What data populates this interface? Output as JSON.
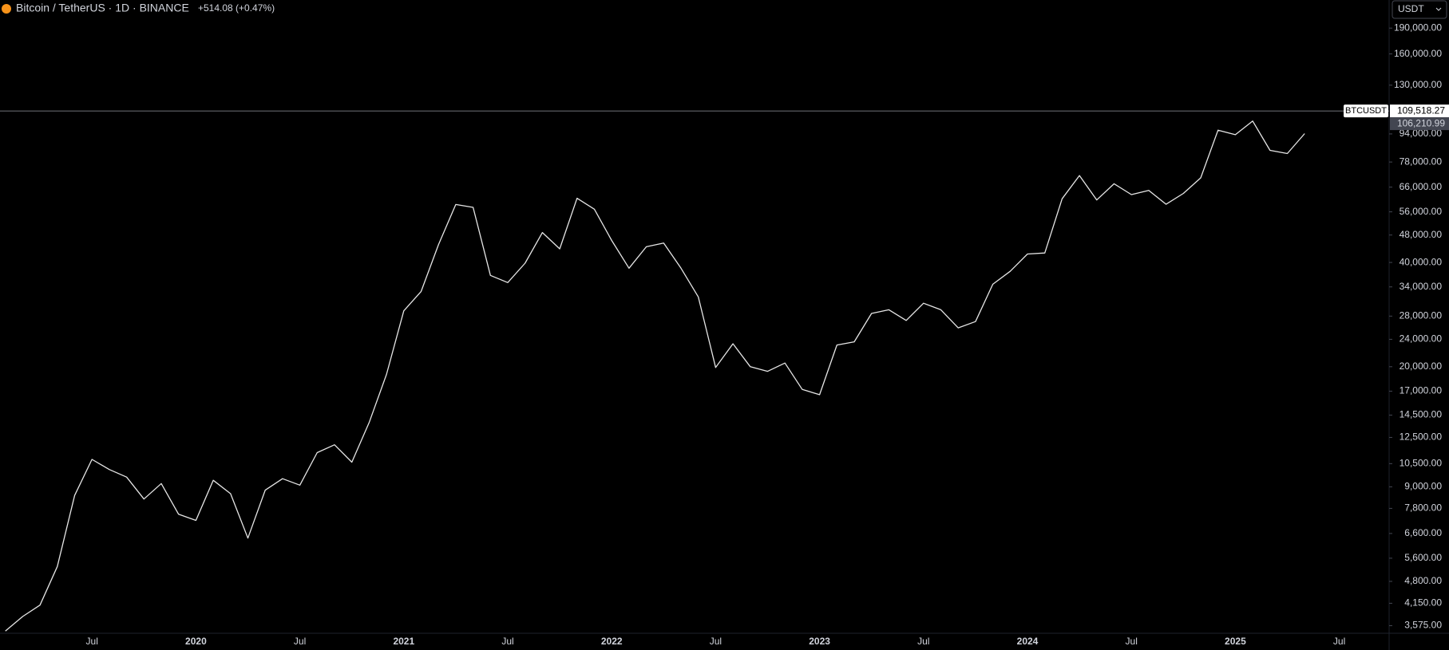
{
  "chart_data": {
    "type": "line",
    "title": "Bitcoin / TetherUS · 1D · BINANCE",
    "change": "+514.08 (+0.47%)",
    "currency": "USDT",
    "symbol": "BTCUSDT",
    "log_scale": true,
    "grid": false,
    "last_price": {
      "value": 109518.27,
      "label": "109,518.27"
    },
    "prev_price": {
      "value": 106210.99,
      "label": "106,210.99"
    },
    "categories": [
      null,
      null,
      null,
      null,
      null,
      "Jul",
      null,
      null,
      null,
      null,
      null,
      "2020",
      null,
      null,
      null,
      null,
      null,
      "Jul",
      null,
      null,
      null,
      null,
      null,
      "2021",
      null,
      null,
      null,
      null,
      null,
      "Jul",
      null,
      null,
      null,
      null,
      null,
      "2022",
      null,
      null,
      null,
      null,
      null,
      "Jul",
      null,
      null,
      null,
      null,
      null,
      "2023",
      null,
      null,
      null,
      null,
      null,
      "Jul",
      null,
      null,
      null,
      null,
      null,
      "2024",
      null,
      null,
      null,
      null,
      null,
      "Jul",
      null,
      null,
      null,
      null,
      null,
      "2025",
      null,
      null,
      null,
      null,
      null,
      "Jul"
    ],
    "series": [
      {
        "name": "BTCUSDT",
        "color": "#e6e6e6",
        "values": [
          3450,
          3800,
          4100,
          5300,
          8500,
          10800,
          10100,
          9600,
          8300,
          9200,
          7500,
          7200,
          9400,
          8600,
          6400,
          8800,
          9500,
          9100,
          11300,
          11900,
          10600,
          13800,
          19000,
          29000,
          33000,
          45000,
          58800,
          57700,
          36700,
          35000,
          39800,
          48800,
          43800,
          61300,
          57000,
          46300,
          38500,
          44400,
          45500,
          38500,
          31800,
          19900,
          23300,
          20000,
          19400,
          20500,
          17200,
          16600,
          23100,
          23600,
          28500,
          29200,
          27200,
          30500,
          29200,
          25900,
          27000,
          34600,
          37700,
          42300,
          42600,
          61100,
          71300,
          60600,
          67500,
          62800,
          64600,
          58900,
          63300,
          70200,
          96400,
          93500,
          102400,
          84300,
          82500,
          94200,
          null,
          null
        ]
      }
    ],
    "ylim": [
      3400,
      229000
    ],
    "yticks": [
      {
        "value": 3575,
        "label": "3,575.00"
      },
      {
        "value": 4150,
        "label": "4,150.00"
      },
      {
        "value": 4800,
        "label": "4,800.00"
      },
      {
        "value": 5600,
        "label": "5,600.00"
      },
      {
        "value": 6600,
        "label": "6,600.00"
      },
      {
        "value": 7800,
        "label": "7,800.00"
      },
      {
        "value": 9000,
        "label": "9,000.00"
      },
      {
        "value": 10500,
        "label": "10,500.00"
      },
      {
        "value": 12500,
        "label": "12,500.00"
      },
      {
        "value": 14500,
        "label": "14,500.00"
      },
      {
        "value": 17000,
        "label": "17,000.00"
      },
      {
        "value": 20000,
        "label": "20,000.00"
      },
      {
        "value": 24000,
        "label": "24,000.00"
      },
      {
        "value": 28000,
        "label": "28,000.00"
      },
      {
        "value": 34000,
        "label": "34,000.00"
      },
      {
        "value": 40000,
        "label": "40,000.00"
      },
      {
        "value": 48000,
        "label": "48,000.00"
      },
      {
        "value": 56000,
        "label": "56,000.00"
      },
      {
        "value": 66000,
        "label": "66,000.00"
      },
      {
        "value": 78000,
        "label": "78,000.00"
      },
      {
        "value": 94000,
        "label": "94,000.00"
      },
      {
        "value": 130000,
        "label": "130,000.00"
      },
      {
        "value": 160000,
        "label": "160,000.00"
      },
      {
        "value": 190000,
        "label": "190,000.00"
      }
    ]
  }
}
